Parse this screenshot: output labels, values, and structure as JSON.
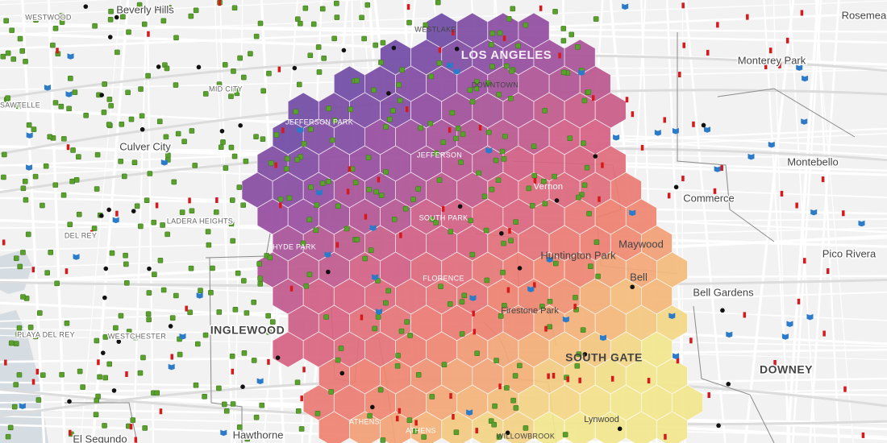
{
  "labels": [
    "WESTWOOD",
    "Beverly Hills",
    "Rosemead",
    "WESTLAKE",
    "LOS ANGELES",
    "DOWNTOWN",
    "Monterey Park",
    "SAWTELLE",
    "MID CITY",
    "JEFFERSON PARK",
    "Culver City",
    "JEFFERSON",
    "Montebello",
    "Vernon",
    "Commerce",
    "LADERA HEIGHTS",
    "SOUTH PARK",
    "DEL REY",
    "HYDE PARK",
    "Maywood",
    "Huntington Park",
    "Pico Rivera",
    "FLORENCE",
    "Bell",
    "Bell Gardens",
    "PLAYA DEL REY",
    "WESTCHESTER",
    "INGLEWOOD",
    "Firestone Park",
    "SOUTH GATE",
    "DOWNEY",
    "ATHENS",
    "ATHENS",
    "WILLOWBROOK",
    "Lynwood",
    "El Segundo",
    "Hawthorne"
  ]
}
